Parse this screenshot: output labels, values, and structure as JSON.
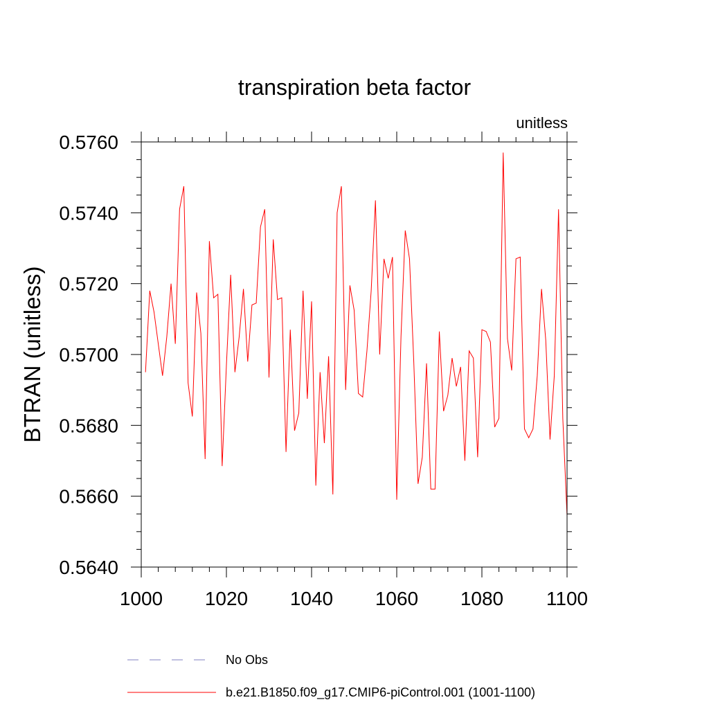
{
  "chart_data": {
    "type": "line",
    "title": "transpiration beta factor",
    "units_label": "unitless",
    "xlabel": "",
    "ylabel": "BTRAN  (unitless)",
    "xlim": [
      1000,
      1100
    ],
    "ylim": [
      0.564,
      0.576
    ],
    "x_ticks": [
      1000,
      1020,
      1040,
      1060,
      1080,
      1100
    ],
    "x_tick_labels": [
      "1000",
      "1020",
      "1040",
      "1060",
      "1080",
      "1100"
    ],
    "y_ticks": [
      0.564,
      0.566,
      0.568,
      0.57,
      0.572,
      0.574,
      0.576
    ],
    "y_tick_labels": [
      "0.5640",
      "0.5660",
      "0.5680",
      "0.5700",
      "0.5720",
      "0.5740",
      "0.5760"
    ],
    "x_minor_step": 4,
    "y_minor_step": 0.0005,
    "grid": false,
    "legend_position": "bottom",
    "series": [
      {
        "name": "b.e21.B1850.f09_g17.CMIP6-piControl.001 (1001-1100)",
        "color": "#ff0000",
        "style": "solid",
        "x_start": 1001,
        "x_step": 1,
        "values": [
          0.5695,
          0.5718,
          0.5712,
          0.5703,
          0.5694,
          0.5705,
          0.572,
          0.5703,
          0.5741,
          0.57475,
          0.5692,
          0.56825,
          0.57175,
          0.5706,
          0.56705,
          0.5732,
          0.5716,
          0.5717,
          0.56685,
          0.5697,
          0.57225,
          0.5695,
          0.5705,
          0.57185,
          0.5698,
          0.5714,
          0.57145,
          0.5736,
          0.5741,
          0.56935,
          0.57325,
          0.57155,
          0.5716,
          0.56725,
          0.5707,
          0.56785,
          0.56835,
          0.5718,
          0.56875,
          0.5715,
          0.5663,
          0.5695,
          0.5675,
          0.56995,
          0.56605,
          0.574,
          0.57475,
          0.569,
          0.57195,
          0.57125,
          0.5689,
          0.5688,
          0.5701,
          0.5718,
          0.57435,
          0.57,
          0.5727,
          0.57215,
          0.57275,
          0.5659,
          0.5705,
          0.5735,
          0.5727,
          0.5698,
          0.56635,
          0.5671,
          0.56975,
          0.5662,
          0.5662,
          0.57065,
          0.5684,
          0.56885,
          0.5699,
          0.5691,
          0.56965,
          0.567,
          0.5701,
          0.5699,
          0.5671,
          0.5707,
          0.57065,
          0.57035,
          0.56795,
          0.5682,
          0.5757,
          0.57045,
          0.56955,
          0.5727,
          0.57275,
          0.5679,
          0.56765,
          0.5679,
          0.5694,
          0.57185,
          0.5704,
          0.5676,
          0.5694,
          0.5741,
          0.5682,
          0.56545
        ]
      },
      {
        "name": "No Obs",
        "color": "#8080c0",
        "style": "dashed",
        "values": []
      }
    ]
  }
}
